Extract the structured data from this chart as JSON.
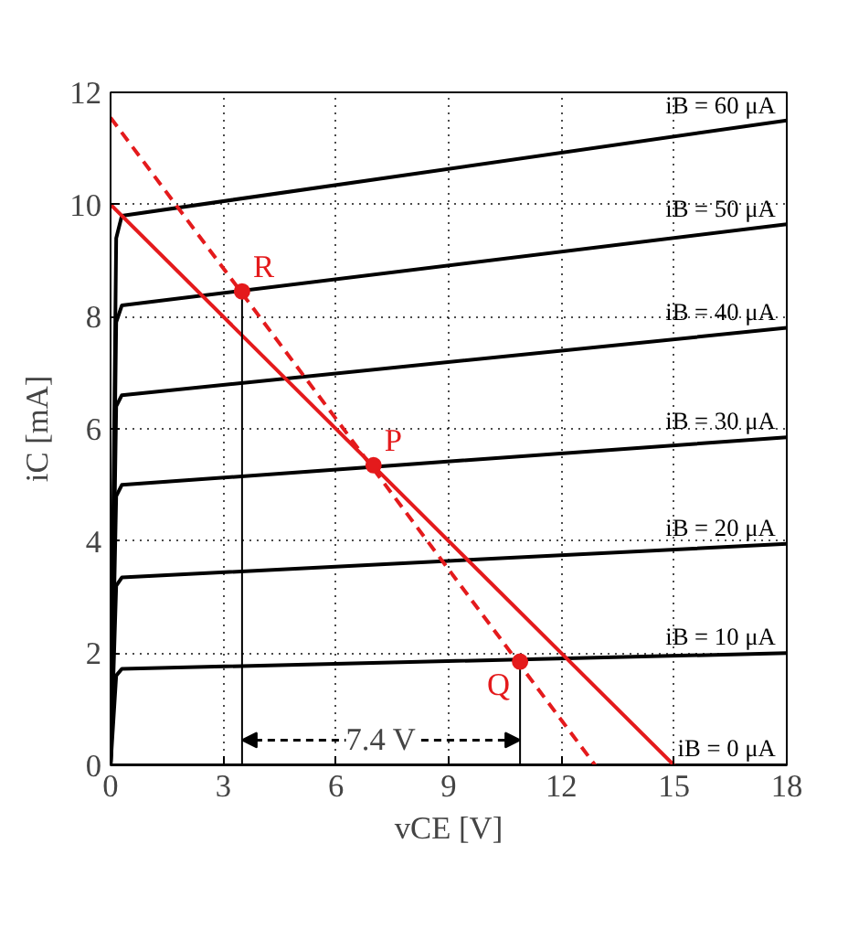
{
  "chart_data": {
    "type": "line",
    "xlabel": "vCE [V]",
    "ylabel": "iC [mA]",
    "xlim": [
      0,
      18
    ],
    "ylim": [
      0,
      12
    ],
    "xticks": [
      0,
      3,
      6,
      9,
      12,
      15,
      18
    ],
    "yticks": [
      0,
      2,
      4,
      6,
      8,
      10,
      12
    ],
    "grid": true,
    "series": [
      {
        "name": "iB = 0 μA",
        "color": "#000000",
        "x": [
          0,
          0.3,
          18
        ],
        "values": [
          0,
          0,
          0
        ]
      },
      {
        "name": "iB = 10 μA",
        "color": "#000000",
        "x": [
          0,
          0.15,
          0.3,
          18
        ],
        "values": [
          0,
          1.6,
          1.72,
          2.0
        ]
      },
      {
        "name": "iB = 20 μA",
        "color": "#000000",
        "x": [
          0,
          0.15,
          0.3,
          18
        ],
        "values": [
          0,
          3.2,
          3.35,
          3.95
        ]
      },
      {
        "name": "iB = 30 μA",
        "color": "#000000",
        "x": [
          0,
          0.15,
          0.3,
          18
        ],
        "values": [
          0,
          4.8,
          5.0,
          5.85
        ]
      },
      {
        "name": "iB = 40 μA",
        "color": "#000000",
        "x": [
          0,
          0.15,
          0.3,
          18
        ],
        "values": [
          0,
          6.4,
          6.6,
          7.8
        ]
      },
      {
        "name": "iB = 50 μA",
        "color": "#000000",
        "x": [
          0,
          0.15,
          0.3,
          18
        ],
        "values": [
          0,
          7.9,
          8.2,
          9.65
        ]
      },
      {
        "name": "iB = 60 μA",
        "color": "#000000",
        "x": [
          0,
          0.15,
          0.3,
          18
        ],
        "values": [
          0,
          9.4,
          9.8,
          11.5
        ]
      },
      {
        "color": "#e41a1c",
        "x": [
          0,
          15
        ],
        "values": [
          10,
          0
        ]
      },
      {
        "color": "#e41a1c",
        "x": [
          0,
          12.9
        ],
        "values": [
          11.55,
          0
        ],
        "line_style": "dashed"
      },
      {
        "color": "#000000",
        "x": [
          3.5,
          3.5
        ],
        "values": [
          0,
          8.45
        ]
      },
      {
        "color": "#000000",
        "x": [
          10.9,
          10.9
        ],
        "values": [
          0,
          1.85
        ]
      },
      {
        "type": "scatter",
        "color": "#e41a1c",
        "marker": "circle",
        "x": [
          3.5,
          7.0,
          10.9
        ],
        "values": [
          8.45,
          5.35,
          1.85
        ]
      }
    ],
    "annotations": [
      {
        "text": "R",
        "x": 3.5,
        "y": 8.45
      },
      {
        "text": "P",
        "x": 7.0,
        "y": 5.35
      },
      {
        "text": "Q",
        "x": 10.9,
        "y": 1.85
      },
      {
        "text": "7.4 V",
        "x": 7.2,
        "y": 0.45
      }
    ]
  }
}
